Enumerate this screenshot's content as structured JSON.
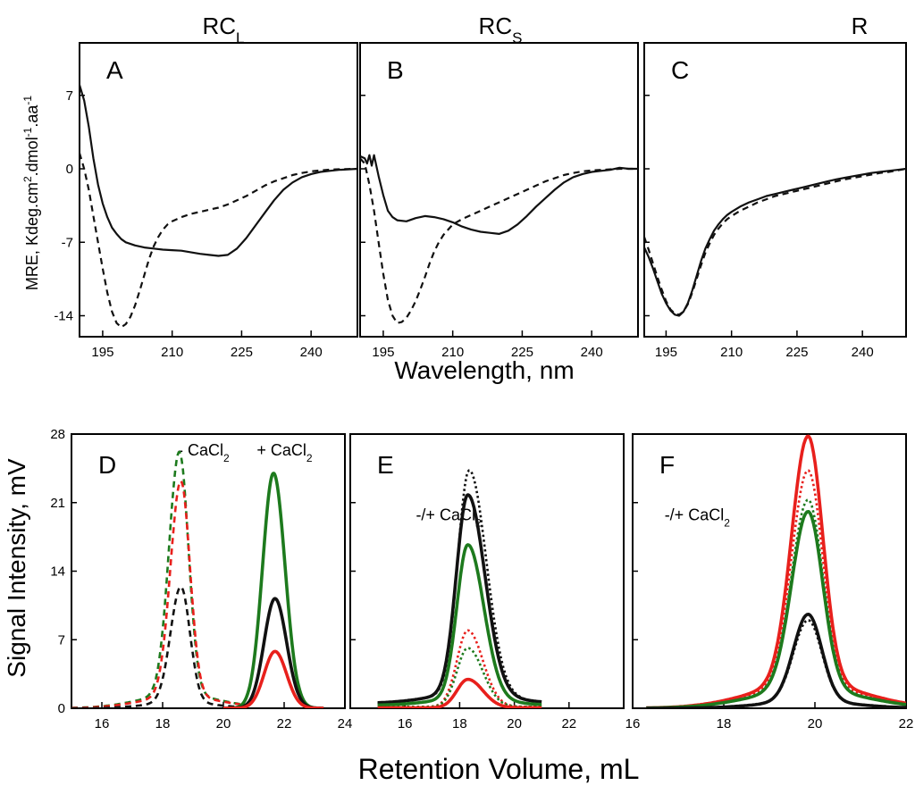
{
  "colors": {
    "black": "#111111",
    "green": "#1d7a1d",
    "red": "#e8201c"
  },
  "chart_data": [
    {
      "type": "line",
      "id": "A",
      "panel_letter": "A",
      "title": "RC",
      "title_sub": "L",
      "xlim": [
        190,
        250
      ],
      "ylim": [
        -16,
        12
      ],
      "xticks": [
        "195",
        "210",
        "225",
        "240"
      ],
      "xtick_values": [
        195,
        210,
        225,
        240
      ],
      "yticks": [
        "7",
        "0",
        "-7",
        "-14"
      ],
      "ytick_values": [
        7,
        0,
        -7,
        -14
      ],
      "series": [
        {
          "name": "solid",
          "color": "black",
          "style": "solid",
          "x": [
            190,
            191,
            192,
            193,
            194,
            195,
            196,
            197,
            198,
            199,
            200,
            202,
            204,
            206,
            208,
            210,
            212,
            214,
            216,
            218,
            220,
            222,
            224,
            226,
            228,
            230,
            232,
            234,
            236,
            238,
            240,
            242,
            244,
            246,
            248,
            250
          ],
          "y": [
            8,
            6.5,
            4,
            1,
            -1.5,
            -3.3,
            -4.6,
            -5.6,
            -6.2,
            -6.7,
            -7,
            -7.3,
            -7.5,
            -7.6,
            -7.7,
            -7.75,
            -7.8,
            -7.95,
            -8.1,
            -8.2,
            -8.3,
            -8.2,
            -7.6,
            -6.6,
            -5.4,
            -4.2,
            -3,
            -2,
            -1.3,
            -0.8,
            -0.5,
            -0.3,
            -0.2,
            -0.1,
            -0.05,
            0
          ]
        },
        {
          "name": "dashed",
          "color": "black",
          "style": "dashed",
          "x": [
            190,
            191,
            192,
            193,
            194,
            195,
            196,
            197,
            198,
            199,
            200,
            201,
            202,
            203,
            204,
            205,
            206,
            207,
            208,
            209,
            210,
            212,
            214,
            216,
            218,
            220,
            222,
            224,
            226,
            228,
            230,
            232,
            234,
            236,
            238,
            240,
            242,
            244,
            246,
            248,
            250
          ],
          "y": [
            1.5,
            0,
            -2,
            -4.5,
            -7,
            -9.5,
            -11.8,
            -13.6,
            -14.7,
            -15.1,
            -14.8,
            -14.1,
            -13,
            -11.6,
            -10.1,
            -8.6,
            -7.4,
            -6.5,
            -5.8,
            -5.3,
            -5,
            -4.6,
            -4.3,
            -4.1,
            -3.9,
            -3.7,
            -3.4,
            -3,
            -2.6,
            -2.1,
            -1.6,
            -1.2,
            -0.9,
            -0.6,
            -0.4,
            -0.25,
            -0.15,
            -0.08,
            -0.04,
            -0.02,
            0
          ]
        }
      ]
    },
    {
      "type": "line",
      "id": "B",
      "panel_letter": "B",
      "title": "RC",
      "title_sub": "S",
      "xlim": [
        190,
        250
      ],
      "ylim": [
        -16,
        12
      ],
      "xticks": [
        "195",
        "210",
        "225",
        "240"
      ],
      "xtick_values": [
        195,
        210,
        225,
        240
      ],
      "yticks": [],
      "ytick_values": [
        7,
        0,
        -7,
        -14
      ],
      "series": [
        {
          "name": "solid",
          "color": "black",
          "style": "solid",
          "x": [
            190,
            191,
            191.5,
            192,
            192.5,
            193,
            194,
            195,
            196,
            197,
            198,
            200,
            202,
            204,
            206,
            208,
            210,
            212,
            214,
            216,
            218,
            220,
            222,
            224,
            226,
            228,
            230,
            232,
            234,
            236,
            238,
            240,
            242,
            244,
            246,
            248,
            250
          ],
          "y": [
            1.2,
            1,
            0.5,
            1.3,
            0.3,
            1.3,
            -0.7,
            -2.5,
            -4,
            -4.6,
            -4.9,
            -5,
            -4.7,
            -4.5,
            -4.6,
            -4.8,
            -5.1,
            -5.5,
            -5.8,
            -6,
            -6.1,
            -6.2,
            -5.9,
            -5.3,
            -4.5,
            -3.6,
            -2.8,
            -2,
            -1.3,
            -0.8,
            -0.5,
            -0.3,
            -0.2,
            -0.1,
            0.1,
            0,
            0
          ]
        },
        {
          "name": "dashed",
          "color": "black",
          "style": "dashed",
          "x": [
            190,
            191,
            192,
            193,
            194,
            195,
            196,
            197,
            198,
            199,
            200,
            201,
            202,
            203,
            204,
            205,
            206,
            207,
            208,
            209,
            210,
            212,
            214,
            216,
            218,
            220,
            222,
            224,
            226,
            228,
            230,
            232,
            234,
            236,
            238,
            240,
            242,
            244,
            246,
            248,
            250
          ],
          "y": [
            1,
            0.5,
            -1.5,
            -4,
            -7,
            -10,
            -12.5,
            -14,
            -14.7,
            -14.6,
            -14.2,
            -13.5,
            -12.6,
            -11.5,
            -10.3,
            -9,
            -7.9,
            -7,
            -6.3,
            -5.8,
            -5.3,
            -4.8,
            -4.4,
            -4,
            -3.6,
            -3.2,
            -2.8,
            -2.4,
            -2,
            -1.6,
            -1.2,
            -0.9,
            -0.6,
            -0.4,
            -0.25,
            -0.15,
            -0.1,
            -0.05,
            0,
            0,
            0
          ]
        }
      ]
    },
    {
      "type": "line",
      "id": "C",
      "panel_letter": "C",
      "title": "R",
      "title_sub": "",
      "xlim": [
        190,
        250
      ],
      "ylim": [
        -16,
        12
      ],
      "xticks": [
        "195",
        "210",
        "225",
        "240"
      ],
      "xtick_values": [
        195,
        210,
        225,
        240
      ],
      "yticks": [],
      "ytick_values": [
        7,
        0,
        -7,
        -14
      ],
      "series": [
        {
          "name": "solid",
          "color": "black",
          "style": "solid",
          "x": [
            190,
            191,
            192,
            193,
            194,
            195,
            196,
            197,
            198,
            199,
            200,
            201,
            202,
            203,
            204,
            205,
            206,
            207,
            208,
            209,
            210,
            212,
            214,
            216,
            218,
            220,
            222,
            224,
            226,
            228,
            230,
            232,
            234,
            236,
            238,
            240,
            242,
            244,
            246,
            248,
            250
          ],
          "y": [
            -7.5,
            -8.4,
            -9.5,
            -10.7,
            -11.9,
            -12.8,
            -13.5,
            -13.9,
            -14,
            -13.6,
            -12.8,
            -11.6,
            -10.2,
            -8.8,
            -7.6,
            -6.7,
            -5.9,
            -5.3,
            -4.8,
            -4.4,
            -4.1,
            -3.6,
            -3.2,
            -2.9,
            -2.6,
            -2.4,
            -2.2,
            -2,
            -1.8,
            -1.6,
            -1.4,
            -1.2,
            -1,
            -0.85,
            -0.7,
            -0.55,
            -0.4,
            -0.3,
            -0.2,
            -0.1,
            0
          ]
        },
        {
          "name": "dashed",
          "color": "black",
          "style": "dashed",
          "x": [
            190,
            191,
            192,
            193,
            194,
            195,
            196,
            197,
            198,
            199,
            200,
            201,
            202,
            203,
            204,
            205,
            206,
            207,
            208,
            209,
            210,
            212,
            214,
            216,
            218,
            220,
            222,
            224,
            226,
            228,
            230,
            232,
            234,
            236,
            238,
            240,
            242,
            244,
            246,
            248,
            250
          ],
          "y": [
            -6.5,
            -7.7,
            -9,
            -10.3,
            -11.5,
            -12.6,
            -13.4,
            -13.8,
            -13.9,
            -13.6,
            -12.9,
            -11.8,
            -10.5,
            -9.2,
            -8,
            -7.1,
            -6.3,
            -5.7,
            -5.2,
            -4.8,
            -4.5,
            -4,
            -3.6,
            -3.2,
            -2.9,
            -2.6,
            -2.4,
            -2.2,
            -2,
            -1.8,
            -1.6,
            -1.4,
            -1.2,
            -1,
            -0.85,
            -0.7,
            -0.55,
            -0.4,
            -0.3,
            -0.15,
            0
          ]
        }
      ]
    },
    {
      "type": "line",
      "id": "D",
      "panel_letter": "D",
      "xlim": [
        15,
        24
      ],
      "ylim": [
        0,
        28
      ],
      "xticks": [
        "16",
        "18",
        "20",
        "22",
        "24"
      ],
      "xtick_values": [
        16,
        18,
        20,
        22,
        24
      ],
      "yticks": [
        "28",
        "21",
        "14",
        "7",
        "0"
      ],
      "ytick_values": [
        28,
        21,
        14,
        7,
        0
      ],
      "annotations": [
        {
          "text": "- CaCl",
          "sub": "2",
          "x": 18.5,
          "y": 25.8
        },
        {
          "text": "+ CaCl",
          "sub": "2",
          "x": 21.1,
          "y": 25.8
        }
      ],
      "peaks": [
        {
          "name": "green -CaCl2",
          "color": "green",
          "style": "dashed",
          "center": 18.55,
          "height": 24.8,
          "w_left": 0.34,
          "w_right": 0.3,
          "range": [
            15,
            20.7
          ],
          "tail_amp": 1.4,
          "tail_w": 1.3
        },
        {
          "name": "red -CaCl2",
          "color": "red",
          "style": "dashed",
          "center": 18.6,
          "height": 22,
          "w_left": 0.34,
          "w_right": 0.3,
          "range": [
            15,
            20.7
          ],
          "tail_amp": 1.2,
          "tail_w": 1.3
        },
        {
          "name": "black -CaCl2",
          "color": "black",
          "style": "dashed",
          "center": 18.6,
          "height": 11.8,
          "w_left": 0.34,
          "w_right": 0.3,
          "range": [
            15,
            20.7
          ],
          "tail_amp": 0.6,
          "tail_w": 1.1
        },
        {
          "name": "green +CaCl2",
          "color": "green",
          "style": "solid",
          "center": 21.65,
          "height": 24,
          "w_left": 0.36,
          "w_right": 0.38,
          "range": [
            20.0,
            23.3
          ]
        },
        {
          "name": "black +CaCl2",
          "color": "black",
          "style": "solid",
          "center": 21.7,
          "height": 11.2,
          "w_left": 0.36,
          "w_right": 0.38,
          "range": [
            20.0,
            23.3
          ]
        },
        {
          "name": "red +CaCl2",
          "color": "red",
          "style": "solid",
          "center": 21.7,
          "height": 5.8,
          "w_left": 0.36,
          "w_right": 0.38,
          "range": [
            20.0,
            23.3
          ]
        }
      ]
    },
    {
      "type": "line",
      "id": "E",
      "panel_letter": "E",
      "xlim": [
        14,
        24
      ],
      "ylim": [
        0,
        28
      ],
      "xticks": [
        "16",
        "18",
        "20",
        "22"
      ],
      "xtick_values": [
        16,
        18,
        20,
        22
      ],
      "yticks": [],
      "ytick_values": [
        28,
        21,
        14,
        7,
        0
      ],
      "annotations": [
        {
          "text": "-/+ CaCl",
          "sub": "2",
          "x": 16.4,
          "y": 19.2
        }
      ],
      "peaks": [
        {
          "name": "black dotted",
          "color": "black",
          "style": "dotted",
          "center": 18.35,
          "height": 22.8,
          "w_left": 0.42,
          "w_right": 0.62,
          "range": [
            15,
            21
          ],
          "baseline": 0.5,
          "tail_amp": 1,
          "tail_w": 1.4
        },
        {
          "name": "black solid",
          "color": "black",
          "style": "solid",
          "center": 18.3,
          "height": 20.3,
          "w_left": 0.42,
          "w_right": 0.62,
          "range": [
            15,
            21
          ],
          "baseline": 0.5,
          "tail_amp": 1,
          "tail_w": 1.4
        },
        {
          "name": "green solid",
          "color": "green",
          "style": "solid",
          "center": 18.3,
          "height": 15.7,
          "w_left": 0.4,
          "w_right": 0.58,
          "range": [
            15,
            21
          ],
          "baseline": 0.3,
          "tail_amp": 0.7,
          "tail_w": 1.3
        },
        {
          "name": "red dotted",
          "color": "red",
          "style": "dotted",
          "center": 18.3,
          "height": 7.8,
          "w_left": 0.4,
          "w_right": 0.55,
          "range": [
            15,
            21
          ],
          "baseline": 0.15
        },
        {
          "name": "green dotted",
          "color": "green",
          "style": "dotted",
          "center": 18.3,
          "height": 6,
          "w_left": 0.4,
          "w_right": 0.55,
          "range": [
            15,
            21
          ],
          "baseline": 0.15
        },
        {
          "name": "red solid",
          "color": "red",
          "style": "solid",
          "center": 18.3,
          "height": 2.9,
          "w_left": 0.4,
          "w_right": 0.55,
          "range": [
            15,
            21
          ],
          "baseline": 0.05
        }
      ]
    },
    {
      "type": "line",
      "id": "F",
      "panel_letter": "F",
      "xlim": [
        16,
        22
      ],
      "ylim": [
        0,
        28
      ],
      "xticks": [
        "16",
        "18",
        "20",
        "22"
      ],
      "xtick_values": [
        16,
        18,
        20,
        22
      ],
      "yticks": [],
      "ytick_values": [
        28,
        21,
        14,
        7,
        0
      ],
      "annotations": [
        {
          "text": "-/+ CaCl",
          "sub": "2",
          "x": 16.7,
          "y": 19.2
        }
      ],
      "peaks": [
        {
          "name": "red solid",
          "color": "red",
          "style": "solid",
          "center": 19.85,
          "height": 25.2,
          "w_left": 0.36,
          "w_right": 0.32,
          "range": [
            16.3,
            22
          ],
          "tail_amp": 2.6,
          "tail_w": 1.2
        },
        {
          "name": "red dotted",
          "color": "red",
          "style": "dotted",
          "center": 19.85,
          "height": 22,
          "w_left": 0.36,
          "w_right": 0.32,
          "range": [
            16.3,
            22
          ],
          "tail_amp": 2.3,
          "tail_w": 1.2
        },
        {
          "name": "green dotted",
          "color": "green",
          "style": "dotted",
          "center": 19.85,
          "height": 19.3,
          "w_left": 0.36,
          "w_right": 0.32,
          "range": [
            16.3,
            22
          ],
          "tail_amp": 2,
          "tail_w": 1.2
        },
        {
          "name": "green solid",
          "color": "green",
          "style": "solid",
          "center": 19.85,
          "height": 18.2,
          "w_left": 0.36,
          "w_right": 0.32,
          "range": [
            16.3,
            22
          ],
          "tail_amp": 1.9,
          "tail_w": 1.2
        },
        {
          "name": "black solid",
          "color": "black",
          "style": "solid",
          "center": 19.85,
          "height": 8.9,
          "w_left": 0.32,
          "w_right": 0.3,
          "range": [
            16.3,
            22
          ],
          "tail_amp": 0.7,
          "tail_w": 1
        },
        {
          "name": "black dotted",
          "color": "black",
          "style": "dotted",
          "center": 19.85,
          "height": 8.3,
          "w_left": 0.32,
          "w_right": 0.3,
          "range": [
            16.3,
            22
          ],
          "tail_amp": 0.7,
          "tail_w": 1
        }
      ]
    }
  ],
  "labels": {
    "top_xlabel": "Wavelength, nm",
    "top_ylabel": "MRE, Kdeg.cm",
    "top_ylabel_sup1": "2",
    "top_ylabel_mid": ".dmol",
    "top_ylabel_sup2": "-1",
    "top_ylabel_end": ".aa",
    "top_ylabel_sup3": "-1",
    "bottom_xlabel": "Retention Volume, mL",
    "bottom_ylabel": "Signal Intensity, mV"
  }
}
